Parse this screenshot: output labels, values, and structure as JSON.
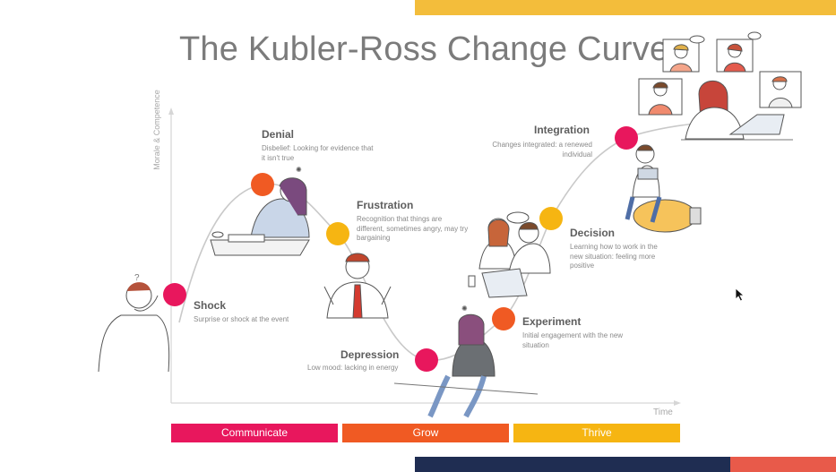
{
  "title": "The Kubler-Ross Change Curve",
  "axes": {
    "y_label": "Morale & Competence",
    "x_label": "Time"
  },
  "stages": [
    {
      "name": "Shock",
      "description": "Surprise or shock at the event",
      "color": "#e8175d"
    },
    {
      "name": "Denial",
      "description": "Disbelief: Looking for evidence that it isn't true",
      "color": "#f05a23"
    },
    {
      "name": "Frustration",
      "description": "Recognition that things are different, sometimes angry, may try bargaining",
      "color": "#f6b512"
    },
    {
      "name": "Depression",
      "description": "Low mood: lacking in energy",
      "color": "#e8175d"
    },
    {
      "name": "Experiment",
      "description": "Initial engagement with the new situation",
      "color": "#f05a23"
    },
    {
      "name": "Decision",
      "description": "Learning how to work in the new situation: feeling more positive",
      "color": "#f6b512"
    },
    {
      "name": "Integration",
      "description": "Changes integrated: a renewed individual",
      "color": "#e8175d"
    }
  ],
  "phases": [
    {
      "label": "Communicate",
      "color": "#e8175d"
    },
    {
      "label": "Grow",
      "color": "#f05a23"
    },
    {
      "label": "Thrive",
      "color": "#f6b512"
    }
  ],
  "colors": {
    "accent_yellow": "#f3bd3b",
    "navy": "#1f2d52",
    "coral": "#e85a4a"
  }
}
